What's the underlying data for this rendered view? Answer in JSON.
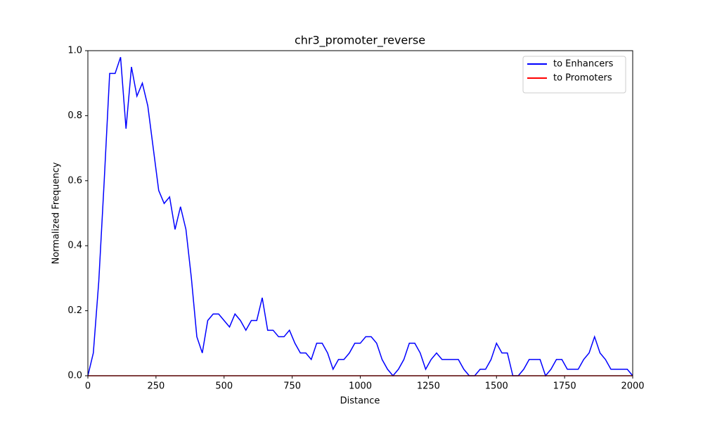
{
  "chart_data": {
    "type": "line",
    "title": "chr3_promoter_reverse",
    "xlabel": "Distance",
    "ylabel": "Normalized Frequency",
    "x": [
      0,
      20,
      40,
      60,
      80,
      100,
      120,
      140,
      160,
      180,
      200,
      220,
      240,
      260,
      280,
      300,
      320,
      340,
      360,
      380,
      400,
      420,
      440,
      460,
      480,
      500,
      520,
      540,
      560,
      580,
      600,
      620,
      640,
      660,
      680,
      700,
      720,
      740,
      760,
      780,
      800,
      820,
      840,
      860,
      880,
      900,
      920,
      940,
      960,
      980,
      1000,
      1020,
      1040,
      1060,
      1080,
      1100,
      1120,
      1140,
      1160,
      1180,
      1200,
      1220,
      1240,
      1260,
      1280,
      1300,
      1320,
      1340,
      1360,
      1380,
      1400,
      1420,
      1440,
      1460,
      1480,
      1500,
      1520,
      1540,
      1560,
      1580,
      1600,
      1620,
      1640,
      1660,
      1680,
      1700,
      1720,
      1740,
      1760,
      1780,
      1800,
      1820,
      1840,
      1860,
      1880,
      1900,
      1920,
      1940,
      1960,
      1980,
      2000
    ],
    "series": [
      {
        "name": "to Enhancers",
        "color": "#0000ff",
        "values": [
          0,
          0.07,
          0.29,
          0.6,
          0.93,
          0.93,
          0.98,
          0.76,
          0.95,
          0.86,
          0.9,
          0.83,
          0.7,
          0.57,
          0.53,
          0.55,
          0.45,
          0.52,
          0.45,
          0.3,
          0.12,
          0.07,
          0.17,
          0.19,
          0.19,
          0.17,
          0.15,
          0.19,
          0.17,
          0.14,
          0.17,
          0.17,
          0.24,
          0.14,
          0.14,
          0.12,
          0.12,
          0.14,
          0.1,
          0.07,
          0.07,
          0.05,
          0.1,
          0.1,
          0.07,
          0.02,
          0.05,
          0.05,
          0.07,
          0.1,
          0.1,
          0.12,
          0.12,
          0.1,
          0.05,
          0.02,
          0,
          0.02,
          0.05,
          0.1,
          0.1,
          0.07,
          0.02,
          0.05,
          0.07,
          0.05,
          0.05,
          0.05,
          0.05,
          0.02,
          0,
          0,
          0.02,
          0.02,
          0.05,
          0.1,
          0.07,
          0.07,
          0,
          0,
          0.02,
          0.05,
          0.05,
          0.05,
          0,
          0.02,
          0.05,
          0.05,
          0.02,
          0.02,
          0.02,
          0.05,
          0.07,
          0.12,
          0.07,
          0.05,
          0.02,
          0.02,
          0.02,
          0.02,
          0
        ]
      },
      {
        "name": "to Promoters",
        "color": "#ff0000",
        "values": [
          0,
          0,
          0,
          0,
          0,
          0,
          0,
          0,
          0,
          0,
          0,
          0,
          0,
          0,
          0,
          0,
          0,
          0,
          0,
          0,
          0,
          0,
          0,
          0,
          0,
          0,
          0,
          0,
          0,
          0,
          0,
          0,
          0,
          0,
          0,
          0,
          0,
          0,
          0,
          0,
          0,
          0,
          0,
          0,
          0,
          0,
          0,
          0,
          0,
          0,
          0,
          0,
          0,
          0,
          0,
          0,
          0,
          0,
          0,
          0,
          0,
          0,
          0,
          0,
          0,
          0,
          0,
          0,
          0,
          0,
          0,
          0,
          0,
          0,
          0,
          0,
          0,
          0,
          0,
          0,
          0,
          0,
          0,
          0,
          0,
          0,
          0,
          0,
          0,
          0,
          0,
          0,
          0,
          0,
          0,
          0,
          0,
          0,
          0,
          0,
          0
        ]
      }
    ],
    "xlim": [
      0,
      2000
    ],
    "xticks": [
      0,
      250,
      500,
      750,
      1000,
      1250,
      1500,
      1750,
      2000
    ],
    "ylim": [
      0,
      1
    ],
    "yticks": [
      {
        "value": 0,
        "label": "0.0"
      },
      {
        "value": 0.2,
        "label": "0.2"
      },
      {
        "value": 0.4,
        "label": "0.4"
      },
      {
        "value": 0.6,
        "label": "0.6"
      },
      {
        "value": 0.8,
        "label": "0.8"
      },
      {
        "value": 1,
        "label": "1.0"
      }
    ],
    "legend": "upper right"
  }
}
